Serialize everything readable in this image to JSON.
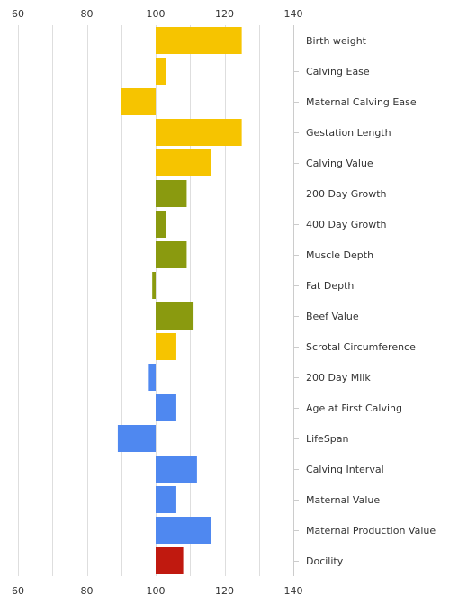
{
  "chart_data": {
    "type": "bar",
    "orientation": "horizontal",
    "categories": [
      "Birth weight",
      "Calving Ease",
      "Maternal Calving Ease",
      "Gestation Length",
      "Calving Value",
      "200 Day Growth",
      "400 Day Growth",
      "Muscle Depth",
      "Fat Depth",
      "Beef Value",
      "Scrotal Circumference",
      "200 Day Milk",
      "Age at First Calving",
      "LifeSpan",
      "Calving Interval",
      "Maternal Value",
      "Maternal Production Value",
      "Docility"
    ],
    "values": [
      125,
      103,
      90,
      125,
      116,
      109,
      103,
      109,
      99,
      111,
      106,
      98,
      106,
      89,
      112,
      106,
      116,
      108
    ],
    "baseline": 100,
    "bar_colors": [
      "#f6c400",
      "#f6c400",
      "#f6c400",
      "#f6c400",
      "#f6c400",
      "#8a9a0f",
      "#8a9a0f",
      "#8a9a0f",
      "#8a9a0f",
      "#8a9a0f",
      "#f6c400",
      "#4f88f0",
      "#4f88f0",
      "#4f88f0",
      "#4f88f0",
      "#4f88f0",
      "#4f88f0",
      "#c0190f"
    ],
    "x_ticks": [
      "60",
      "80",
      "100",
      "120",
      "140"
    ],
    "xlim": [
      60,
      140
    ],
    "grid": true,
    "title": "",
    "xlabel": "",
    "ylabel": ""
  }
}
